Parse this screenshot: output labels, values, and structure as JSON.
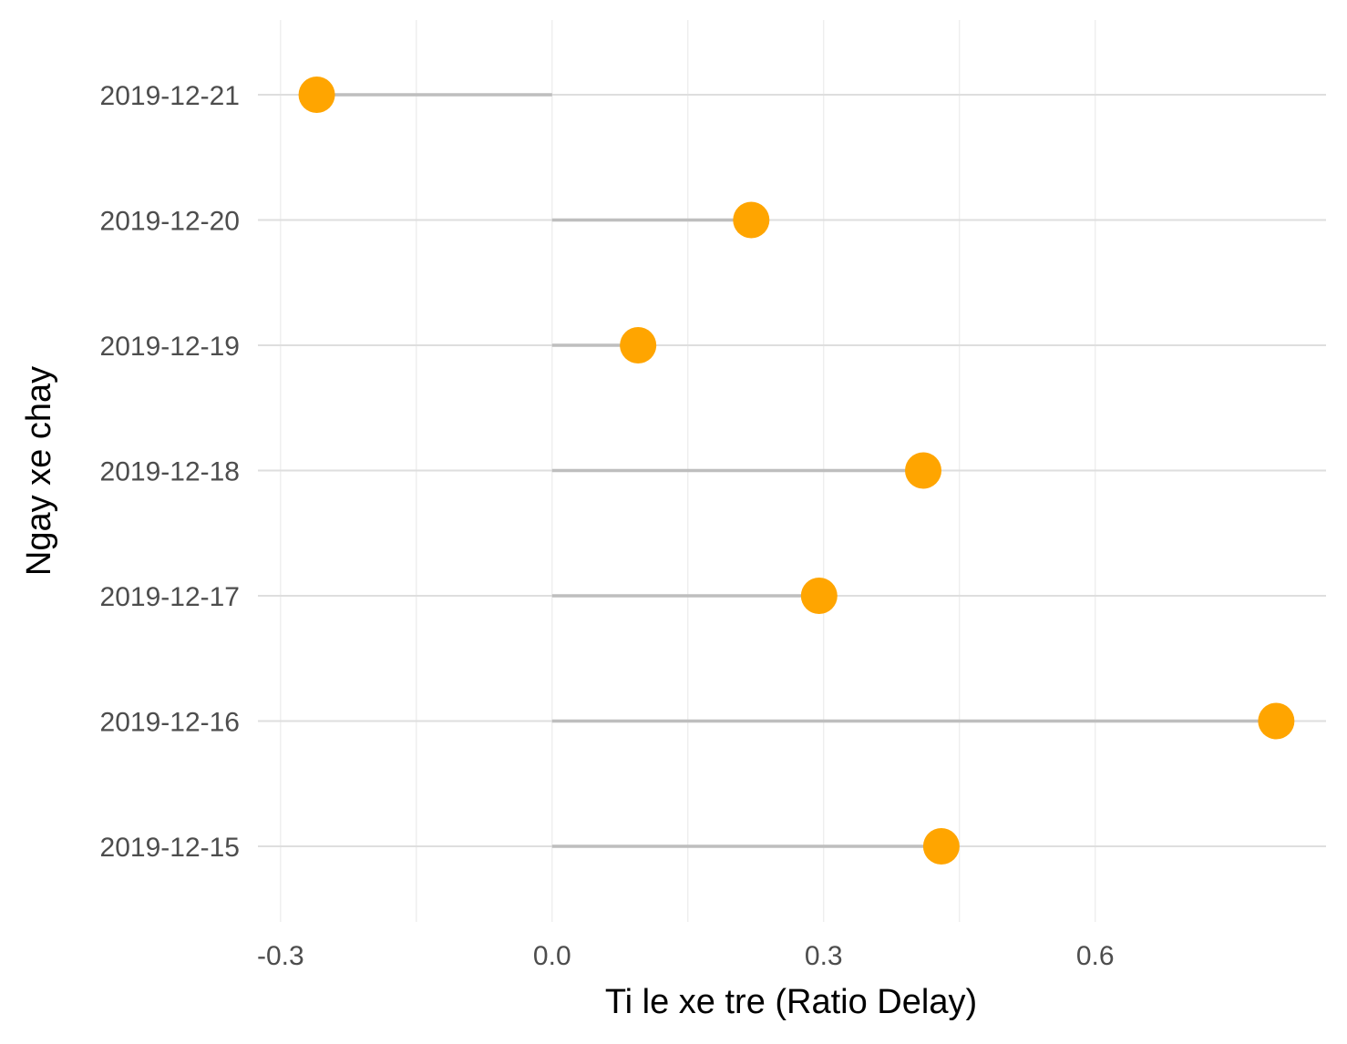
{
  "chart_data": {
    "type": "lollipop",
    "orientation": "horizontal",
    "xlabel": "Ti le xe tre (Ratio Delay)",
    "ylabel": "Ngay xe chay",
    "xlim": [
      -0.325,
      0.855
    ],
    "xticks": [
      -0.3,
      0.0,
      0.3,
      0.6
    ],
    "xtick_labels": [
      "-0.3",
      "0.0",
      "0.3",
      "0.6"
    ],
    "baseline": 0,
    "grid": true,
    "legend": "none",
    "categories": [
      "2019-12-21",
      "2019-12-20",
      "2019-12-19",
      "2019-12-18",
      "2019-12-17",
      "2019-12-16",
      "2019-12-15"
    ],
    "values": [
      -0.26,
      0.22,
      0.095,
      0.41,
      0.295,
      0.8,
      0.43
    ],
    "point_color": "#FFA500",
    "stem_color": "#BEBEBE",
    "grid_major_color": "#DEDEDE",
    "grid_minor_color": "#EBEBEB"
  }
}
